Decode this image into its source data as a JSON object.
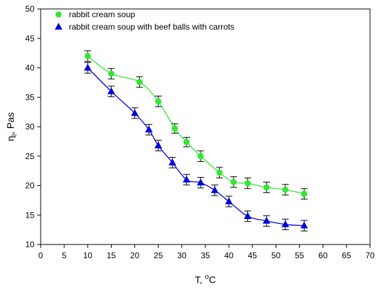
{
  "chart_data": {
    "type": "scatter",
    "x_label": "T, ",
    "x_label_sup": "o",
    "x_label_rest": "C",
    "y_label": "η",
    "y_label_sub": "l",
    "y_label_rest": ", Pas",
    "xlim": [
      0,
      70
    ],
    "xticks": [
      0,
      5,
      10,
      15,
      20,
      25,
      30,
      35,
      40,
      45,
      50,
      55,
      60,
      65,
      70
    ],
    "ylim": [
      10,
      50
    ],
    "yticks": [
      10,
      15,
      20,
      25,
      30,
      35,
      40,
      45,
      50
    ],
    "grid": false,
    "legend": "upper left",
    "series": [
      {
        "name": "rabbit cream soup",
        "color": "#33e633",
        "marker": "circle",
        "x": [
          10,
          15,
          21,
          25,
          28.5,
          31,
          34,
          38,
          41,
          44,
          48,
          52,
          56
        ],
        "values": [
          42,
          39,
          37.6,
          34.3,
          29.7,
          27.4,
          25,
          22.2,
          20.6,
          20.4,
          19.7,
          19.3,
          18.6
        ],
        "errors": [
          0.9,
          0.9,
          0.9,
          0.9,
          0.8,
          0.8,
          0.9,
          0.9,
          0.9,
          0.9,
          0.9,
          0.9,
          0.9
        ]
      },
      {
        "name": "rabbit cream soup with beef balls with carrots",
        "color": "#0000e0",
        "marker": "triangle",
        "x": [
          10,
          15,
          20,
          23,
          25,
          28,
          31,
          34,
          37,
          40,
          44,
          48,
          52,
          56
        ],
        "values": [
          40,
          36,
          32.3,
          29.5,
          26.8,
          23.9,
          21,
          20.5,
          19.2,
          17.3,
          14.8,
          14,
          13.4,
          13.2
        ],
        "errors": [
          0.9,
          0.9,
          0.9,
          0.9,
          0.9,
          0.9,
          0.9,
          0.9,
          0.9,
          0.9,
          0.9,
          0.9,
          0.9,
          0.9
        ]
      }
    ]
  }
}
